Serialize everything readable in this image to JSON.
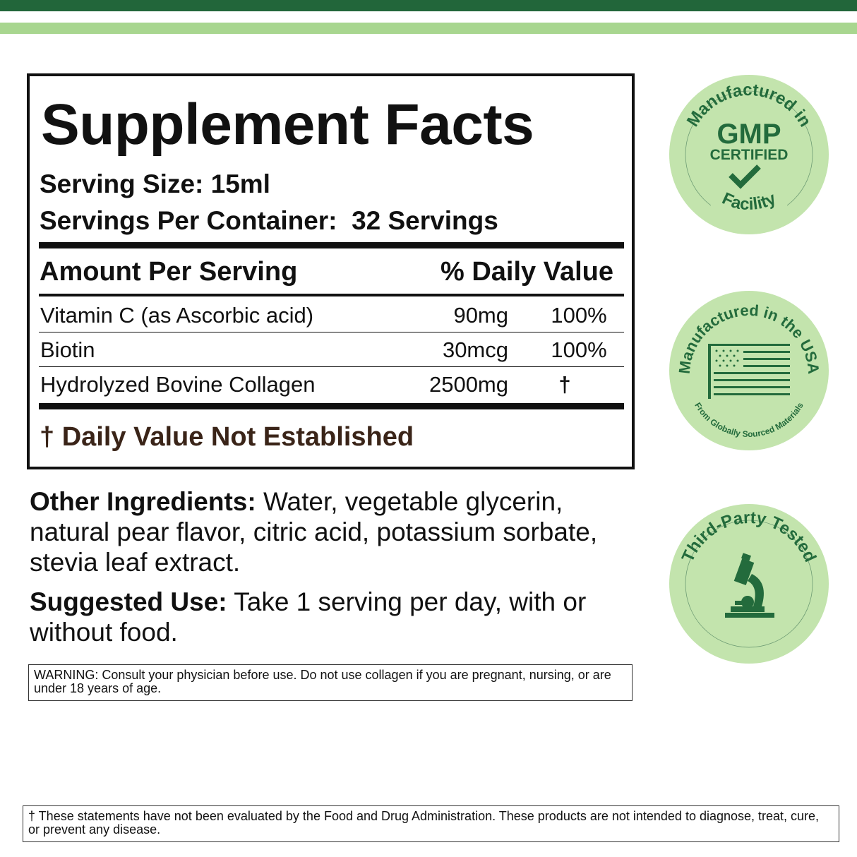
{
  "facts": {
    "title": "Supplement Facts",
    "serving_size": "Serving Size: 15ml",
    "servings_per_container": "Servings Per Container:  32 Servings",
    "header_amount": "Amount Per Serving",
    "header_dv": "% Daily Value",
    "rows": [
      {
        "name": "Vitamin C (as Ascorbic acid)",
        "amount": "90mg",
        "dv": "100%"
      },
      {
        "name": "Biotin",
        "amount": "30mcg",
        "dv": "100%"
      },
      {
        "name": "Hydrolyzed Bovine Collagen",
        "amount": "2500mg",
        "dv": "†"
      }
    ],
    "footnote": "† Daily Value Not Established"
  },
  "other_ingredients": {
    "label": "Other Ingredients:",
    "text": " Water, vegetable glycerin, natural pear flavor, citric acid, potassium sorbate, stevia leaf extract."
  },
  "suggested_use": {
    "label": "Suggested Use:",
    "text": " Take 1 serving per day, with or without food."
  },
  "warning": "WARNING: Consult your physician before use. Do not use collagen if you are pregnant, nursing, or are under 18 years of age.",
  "disclaimer": "† These statements have not been evaluated by the Food and Drug Administration. These products are not intended to diagnose, treat, cure, or prevent any disease.",
  "badges": {
    "gmp": {
      "top": "Manufactured in",
      "main": "GMP",
      "sub": "CERTIFIED",
      "bottom": "Facility",
      "icon": "checkmark-icon"
    },
    "usa": {
      "top": "Manufactured in the USA",
      "bottom": "From Globally Sourced Materials",
      "icon": "us-flag-icon"
    },
    "tested": {
      "top": "Third-Party Tested",
      "icon": "microscope-icon"
    }
  },
  "colors": {
    "dark_green": "#22663a",
    "light_green": "#a8d68f",
    "badge_fill": "#c3e4ad",
    "footnote_brown": "#3a2418"
  }
}
